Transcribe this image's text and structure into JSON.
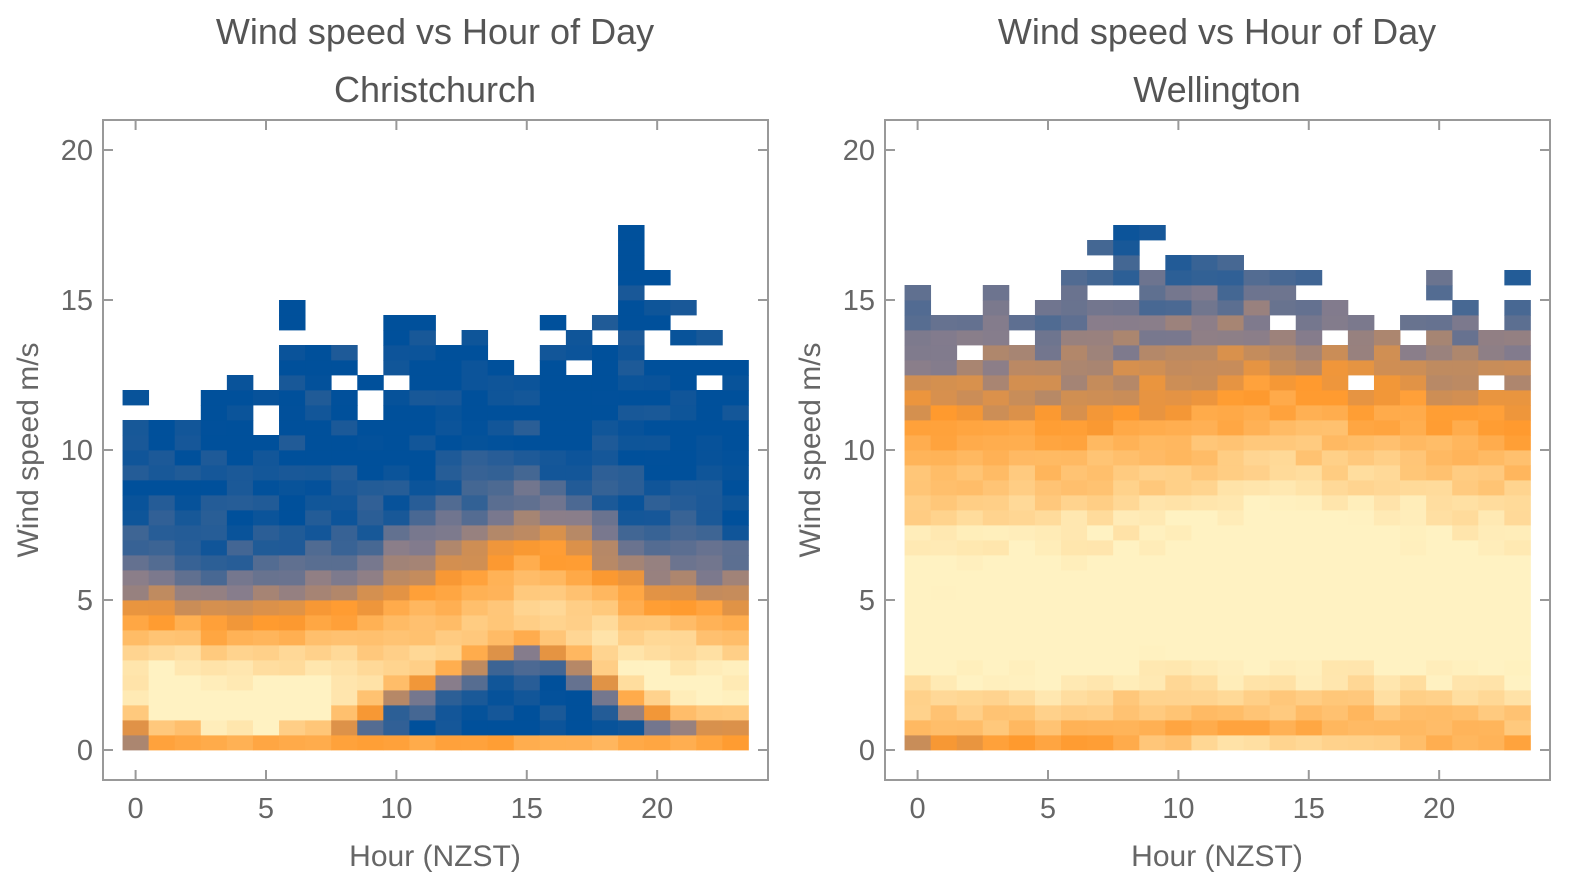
{
  "chart_data": [
    {
      "type": "heatmap",
      "title": "Wind speed vs Hour of Day",
      "subtitle": "Christchurch",
      "xlabel": "Hour (NZST)",
      "ylabel": "Wind speed m/s",
      "xlim": [
        -1.25,
        24.25
      ],
      "ylim": [
        -1,
        21
      ],
      "xticks": [
        0,
        5,
        10,
        15,
        20
      ],
      "yticks": [
        0,
        5,
        10,
        15,
        20
      ],
      "bin_height": 0.5,
      "colormap": {
        "low": "#00509b",
        "mid": "#ff9a2e",
        "high": "#fff2c2"
      },
      "profile": {
        "peak": 1.2,
        "spread_low": 0.8,
        "spread_high": 2.4,
        "jitter": 0.06
      },
      "columns": [
        {
          "hour": 0,
          "max_speed": 11.7,
          "peak_speed": 1.8,
          "intensity": 0.8,
          "calm": 0.45
        },
        {
          "hour": 1,
          "max_speed": 10.8,
          "peak_speed": 1.4,
          "intensity": 0.95,
          "calm": 0.35
        },
        {
          "hour": 2,
          "max_speed": 10.8,
          "peak_speed": 1.5,
          "intensity": 0.92,
          "calm": 0.3
        },
        {
          "hour": 3,
          "max_speed": 11.7,
          "peak_speed": 1.2,
          "intensity": 0.9,
          "calm": 0.25
        },
        {
          "hour": 4,
          "max_speed": 12.2,
          "peak_speed": 1.2,
          "intensity": 0.92,
          "calm": 0.25
        },
        {
          "hour": 5,
          "max_speed": 11.7,
          "peak_speed": 1.2,
          "intensity": 0.94,
          "calm": 0.28
        },
        {
          "hour": 6,
          "max_speed": 14.7,
          "peak_speed": 1.4,
          "intensity": 0.9,
          "calm": 0.3
        },
        {
          "hour": 7,
          "max_speed": 13.2,
          "peak_speed": 1.5,
          "intensity": 0.9,
          "calm": 0.3
        },
        {
          "hour": 8,
          "max_speed": 13.2,
          "peak_speed": 1.8,
          "intensity": 0.82,
          "calm": 0.3
        },
        {
          "hour": 9,
          "max_speed": 12.2,
          "peak_speed": 2.2,
          "intensity": 0.75,
          "calm": 0.2
        },
        {
          "hour": 10,
          "max_speed": 14.2,
          "peak_speed": 2.8,
          "intensity": 0.7,
          "calm": 0.05
        },
        {
          "hour": 11,
          "max_speed": 14.2,
          "peak_speed": 3.0,
          "intensity": 0.68,
          "calm": 0.05
        },
        {
          "hour": 12,
          "max_speed": 13.2,
          "peak_speed": 3.4,
          "intensity": 0.66,
          "calm": 0.05
        },
        {
          "hour": 13,
          "max_speed": 13.7,
          "peak_speed": 3.8,
          "intensity": 0.64,
          "calm": 0.02
        },
        {
          "hour": 14,
          "max_speed": 12.7,
          "peak_speed": 4.2,
          "intensity": 0.64,
          "calm": 0.0
        },
        {
          "hour": 15,
          "max_speed": 12.2,
          "peak_speed": 4.4,
          "intensity": 0.66,
          "calm": 0.0
        },
        {
          "hour": 16,
          "max_speed": 14.2,
          "peak_speed": 4.2,
          "intensity": 0.68,
          "calm": 0.0
        },
        {
          "hour": 17,
          "max_speed": 13.7,
          "peak_speed": 3.8,
          "intensity": 0.7,
          "calm": 0.02
        },
        {
          "hour": 18,
          "max_speed": 14.2,
          "peak_speed": 3.2,
          "intensity": 0.74,
          "calm": 0.05
        },
        {
          "hour": 19,
          "max_speed": 17.2,
          "peak_speed": 2.6,
          "intensity": 0.8,
          "calm": 0.1
        },
        {
          "hour": 20,
          "max_speed": 15.7,
          "peak_speed": 2.2,
          "intensity": 0.84,
          "calm": 0.15
        },
        {
          "hour": 21,
          "max_speed": 14.7,
          "peak_speed": 2.0,
          "intensity": 0.86,
          "calm": 0.2
        },
        {
          "hour": 22,
          "max_speed": 13.7,
          "peak_speed": 1.9,
          "intensity": 0.86,
          "calm": 0.28
        },
        {
          "hour": 23,
          "max_speed": 12.7,
          "peak_speed": 1.8,
          "intensity": 0.84,
          "calm": 0.35
        }
      ]
    },
    {
      "type": "heatmap",
      "title": "Wind speed vs Hour of Day",
      "subtitle": "Wellington",
      "xlabel": "Hour (NZST)",
      "ylabel": "Wind speed m/s",
      "xlim": [
        -1.25,
        24.25
      ],
      "ylim": [
        -1,
        21
      ],
      "xticks": [
        0,
        5,
        10,
        15,
        20
      ],
      "yticks": [
        0,
        5,
        10,
        15,
        20
      ],
      "bin_height": 0.5,
      "colormap": {
        "low": "#00509b",
        "mid": "#ff9a2e",
        "high": "#fff2c2"
      },
      "profile": {
        "peak": 1.25,
        "spread_low": 3.5,
        "spread_high": 5.5,
        "jitter": 0.07
      },
      "columns": [
        {
          "hour": 0,
          "max_speed": 15.2,
          "peak_speed": 4.0,
          "intensity": 0.86,
          "calm": 0.45
        },
        {
          "hour": 1,
          "max_speed": 14.2,
          "peak_speed": 4.0,
          "intensity": 0.86,
          "calm": 0.4
        },
        {
          "hour": 2,
          "max_speed": 14.2,
          "peak_speed": 4.0,
          "intensity": 0.87,
          "calm": 0.35
        },
        {
          "hour": 3,
          "max_speed": 15.2,
          "peak_speed": 4.0,
          "intensity": 0.87,
          "calm": 0.3
        },
        {
          "hour": 4,
          "max_speed": 14.2,
          "peak_speed": 4.1,
          "intensity": 0.88,
          "calm": 0.3
        },
        {
          "hour": 5,
          "max_speed": 14.7,
          "peak_speed": 4.1,
          "intensity": 0.88,
          "calm": 0.3
        },
        {
          "hour": 6,
          "max_speed": 15.7,
          "peak_speed": 4.2,
          "intensity": 0.88,
          "calm": 0.3
        },
        {
          "hour": 7,
          "max_speed": 16.7,
          "peak_speed": 4.3,
          "intensity": 0.88,
          "calm": 0.25
        },
        {
          "hour": 8,
          "max_speed": 17.2,
          "peak_speed": 4.4,
          "intensity": 0.88,
          "calm": 0.2
        },
        {
          "hour": 9,
          "max_speed": 17.2,
          "peak_speed": 4.5,
          "intensity": 0.88,
          "calm": 0.1
        },
        {
          "hour": 10,
          "max_speed": 16.2,
          "peak_speed": 4.6,
          "intensity": 0.9,
          "calm": 0.02
        },
        {
          "hour": 11,
          "max_speed": 16.2,
          "peak_speed": 4.7,
          "intensity": 0.92,
          "calm": 0.0
        },
        {
          "hour": 12,
          "max_speed": 16.2,
          "peak_speed": 4.7,
          "intensity": 0.94,
          "calm": 0.0
        },
        {
          "hour": 13,
          "max_speed": 15.7,
          "peak_speed": 4.8,
          "intensity": 0.97,
          "calm": 0.0
        },
        {
          "hour": 14,
          "max_speed": 15.7,
          "peak_speed": 4.8,
          "intensity": 0.95,
          "calm": 0.0
        },
        {
          "hour": 15,
          "max_speed": 15.7,
          "peak_speed": 4.8,
          "intensity": 0.95,
          "calm": 0.0
        },
        {
          "hour": 16,
          "max_speed": 14.7,
          "peak_speed": 4.8,
          "intensity": 0.94,
          "calm": 0.0
        },
        {
          "hour": 17,
          "max_speed": 14.2,
          "peak_speed": 4.7,
          "intensity": 0.93,
          "calm": 0.0
        },
        {
          "hour": 18,
          "max_speed": 13.7,
          "peak_speed": 4.6,
          "intensity": 0.92,
          "calm": 0.05
        },
        {
          "hour": 19,
          "max_speed": 14.2,
          "peak_speed": 4.5,
          "intensity": 0.91,
          "calm": 0.1
        },
        {
          "hour": 20,
          "max_speed": 15.7,
          "peak_speed": 4.4,
          "intensity": 0.91,
          "calm": 0.15
        },
        {
          "hour": 21,
          "max_speed": 14.7,
          "peak_speed": 4.3,
          "intensity": 0.9,
          "calm": 0.2
        },
        {
          "hour": 22,
          "max_speed": 13.7,
          "peak_speed": 4.2,
          "intensity": 0.9,
          "calm": 0.25
        },
        {
          "hour": 23,
          "max_speed": 15.7,
          "peak_speed": 4.1,
          "intensity": 0.89,
          "calm": 0.35
        }
      ]
    }
  ]
}
